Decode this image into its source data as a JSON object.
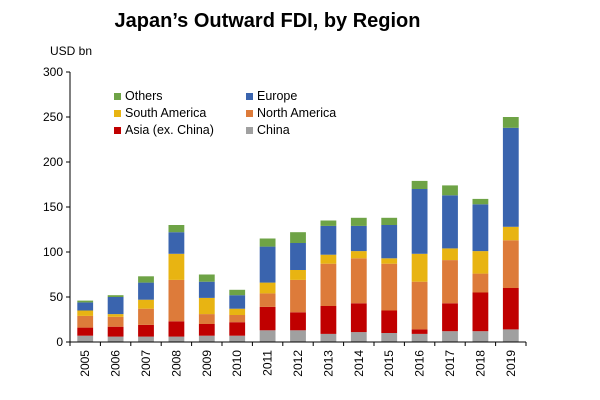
{
  "chart_data": {
    "type": "bar",
    "stacked": true,
    "title": "Japan’s Outward FDI, by Region",
    "ylabel": "USD bn",
    "xlabel": "",
    "ylim": [
      0,
      300
    ],
    "yticks": [
      0,
      50,
      100,
      150,
      200,
      250,
      300
    ],
    "categories": [
      "2005",
      "2006",
      "2007",
      "2008",
      "2009",
      "2010",
      "2011",
      "2012",
      "2013",
      "2014",
      "2015",
      "2016",
      "2017",
      "2018",
      "2019"
    ],
    "series": [
      {
        "name": "China",
        "color": "#a0a0a0",
        "values": [
          7,
          6,
          6,
          6,
          7,
          7,
          13,
          13,
          9,
          11,
          10,
          9,
          12,
          12,
          14
        ]
      },
      {
        "name": "Asia (ex. China)",
        "color": "#c00000",
        "values": [
          9,
          11,
          13,
          17,
          13,
          15,
          26,
          20,
          31,
          32,
          25,
          5,
          31,
          43,
          46
        ]
      },
      {
        "name": "North America",
        "color": "#dd7b3a",
        "values": [
          13,
          11,
          18,
          46,
          11,
          8,
          15,
          36,
          47,
          50,
          52,
          53,
          48,
          21,
          53
        ]
      },
      {
        "name": "South America",
        "color": "#e8b412",
        "values": [
          6,
          3,
          10,
          29,
          18,
          7,
          12,
          11,
          10,
          8,
          6,
          31,
          13,
          25,
          15
        ]
      },
      {
        "name": "Europe",
        "color": "#3a64ae",
        "values": [
          9,
          19,
          19,
          24,
          18,
          15,
          40,
          30,
          32,
          28,
          37,
          72,
          59,
          52,
          110
        ]
      },
      {
        "name": "Others",
        "color": "#6ea346",
        "values": [
          2,
          2,
          7,
          8,
          8,
          6,
          9,
          12,
          6,
          9,
          8,
          9,
          11,
          6,
          12
        ]
      }
    ],
    "legend": {
      "placement": "top-left-inside",
      "order": [
        "Others",
        "Europe",
        "South America",
        "North America",
        "Asia (ex. China)",
        "China"
      ]
    },
    "grid": false
  }
}
